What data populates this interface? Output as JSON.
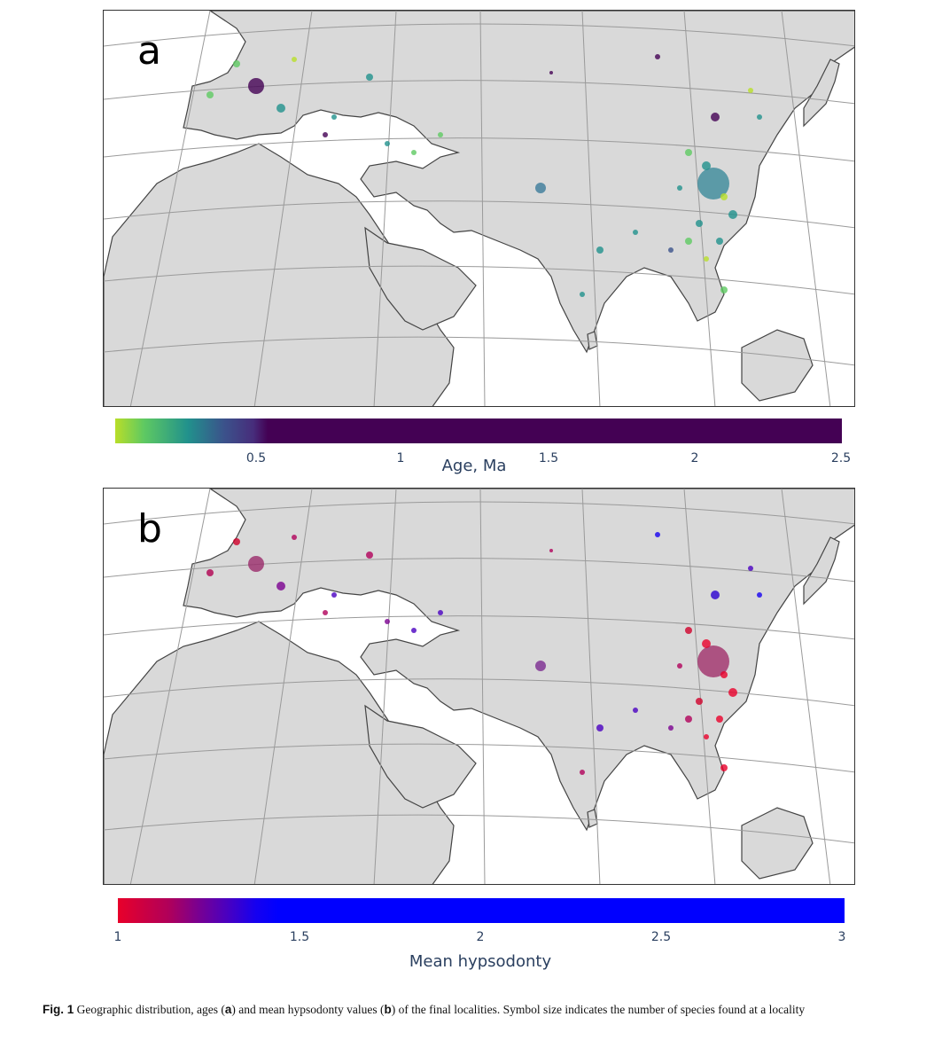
{
  "panels": [
    {
      "id": "a",
      "letter": "a",
      "colorbar": {
        "title": "Age, Ma",
        "ticks": [
          "0.5",
          "1",
          "1.5",
          "2",
          "2.5"
        ],
        "tick_values": [
          0.5,
          1,
          1.5,
          2,
          2.5
        ],
        "range": [
          0,
          2.5
        ],
        "colors": [
          "#b8de29",
          "#5ec962",
          "#21918c",
          "#3b528b",
          "#472d7b",
          "#440154"
        ]
      }
    },
    {
      "id": "b",
      "letter": "b",
      "colorbar": {
        "title": "Mean hypsodonty",
        "ticks": [
          "1",
          "1.5",
          "2",
          "2.5",
          "3"
        ],
        "tick_values": [
          1,
          1.5,
          2,
          2.5,
          3
        ],
        "range": [
          1,
          3
        ],
        "colors": [
          "#e8002a",
          "#b0005a",
          "#7a0090",
          "#4a00c0",
          "#1500f0",
          "#0000ff"
        ]
      }
    }
  ],
  "map_style": {
    "land_color": "#d9d9d9",
    "water_color": "#ffffff",
    "coast_color": "#444444",
    "grid_color": "#9a9a9a"
  },
  "caption": {
    "label": "Fig. 1",
    "text_1": "  Geographic distribution, ages (",
    "bold_a": "a",
    "text_2": ") and mean hypsodonty values (",
    "bold_b": "b",
    "text_3": ") of the final localities. Symbol size indicates the number of species found at a locality"
  }
}
